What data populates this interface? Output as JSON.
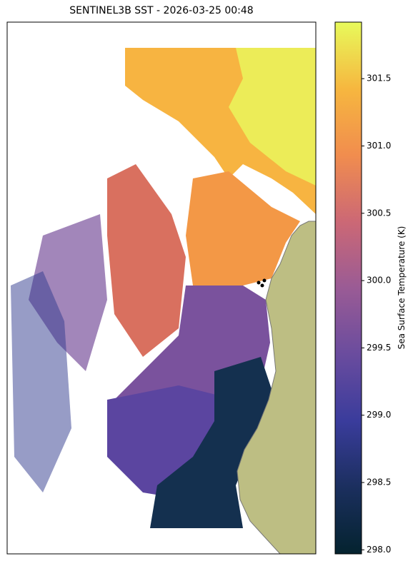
{
  "chart_data": {
    "type": "colormap-map",
    "title": "SENTINEL3B SST - 2026-03-25 00:48",
    "colorbar_label": "Sea Surface Temperature (K)",
    "clim": [
      297.97,
      301.92
    ],
    "cticks": [
      {
        "value": 298,
        "label": "298.0"
      },
      {
        "value": 298.5,
        "label": "298.5"
      },
      {
        "value": 299,
        "label": "299.0"
      },
      {
        "value": 299.5,
        "label": "299.5"
      },
      {
        "value": 300,
        "label": "300.0"
      },
      {
        "value": 300.5,
        "label": "300.5"
      },
      {
        "value": 301,
        "label": "301.0"
      },
      {
        "value": 301.5,
        "label": "301.5"
      }
    ],
    "colormap": [
      "#04232f",
      "#1b2f5e",
      "#3a3c9c",
      "#6a4c9e",
      "#9a5b95",
      "#cc6875",
      "#f18d4e",
      "#f6b73f",
      "#e8fa5b"
    ]
  }
}
